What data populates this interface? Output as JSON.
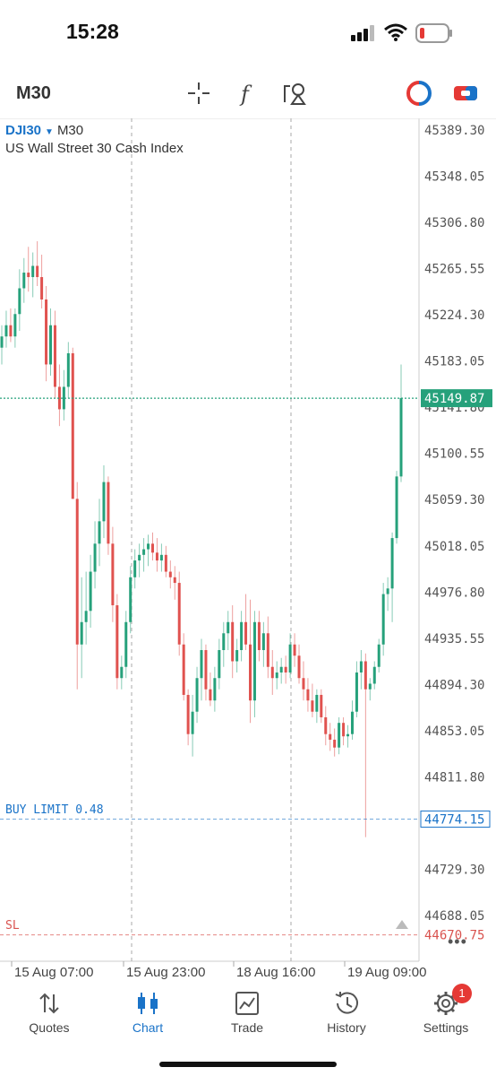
{
  "status_bar": {
    "time": "15:28"
  },
  "toolbar": {
    "timeframe": "M30",
    "icons": [
      "crosshair-icon",
      "function-icon",
      "drawing-objects-icon",
      "one-click-trading-icon",
      "trade-ticket-icon"
    ]
  },
  "chart": {
    "symbol": "DJI30",
    "timeframe": "M30",
    "description": "US Wall Street 30 Cash Index",
    "price_axis_labels": [
      "45389.30",
      "45348.05",
      "45306.80",
      "45265.55",
      "45224.30",
      "45183.05",
      "45141.80",
      "45100.55",
      "45059.30",
      "45018.05",
      "44976.80",
      "44935.55",
      "44894.30",
      "44853.05",
      "44811.80",
      "44774.15",
      "44729.30",
      "44688.05",
      "44670.75"
    ],
    "current_price": "45149.87",
    "buy_limit": {
      "label": "BUY LIMIT 0.48",
      "price": "44774.15"
    },
    "stop_loss": {
      "label": "SL",
      "price": "44670.75"
    },
    "time_labels": [
      "15 Aug 07:00",
      "15 Aug 23:00",
      "18 Aug 16:00",
      "19 Aug 09:00"
    ],
    "colors": {
      "bull": "#26a17b",
      "bear": "#e0524f",
      "buy_limit": "#1a73c8",
      "sl": "#d9534f",
      "current": "#26a17b"
    }
  },
  "chart_data": {
    "type": "candlestick",
    "symbol": "DJI30",
    "timeframe": "M30",
    "ylim": [
      44640,
      45410
    ],
    "candles": [
      {
        "o": 45195,
        "h": 45215,
        "l": 45180,
        "c": 45205
      },
      {
        "o": 45205,
        "h": 45228,
        "l": 45195,
        "c": 45215
      },
      {
        "o": 45215,
        "h": 45230,
        "l": 45200,
        "c": 45205
      },
      {
        "o": 45205,
        "h": 45230,
        "l": 45195,
        "c": 45225
      },
      {
        "o": 45225,
        "h": 45265,
        "l": 45210,
        "c": 45248
      },
      {
        "o": 45248,
        "h": 45275,
        "l": 45235,
        "c": 45262
      },
      {
        "o": 45262,
        "h": 45285,
        "l": 45245,
        "c": 45258
      },
      {
        "o": 45258,
        "h": 45280,
        "l": 45240,
        "c": 45268
      },
      {
        "o": 45268,
        "h": 45290,
        "l": 45250,
        "c": 45258
      },
      {
        "o": 45258,
        "h": 45278,
        "l": 45230,
        "c": 45238
      },
      {
        "o": 45238,
        "h": 45250,
        "l": 45165,
        "c": 45180
      },
      {
        "o": 45180,
        "h": 45230,
        "l": 45170,
        "c": 45215
      },
      {
        "o": 45215,
        "h": 45228,
        "l": 45150,
        "c": 45160
      },
      {
        "o": 45160,
        "h": 45180,
        "l": 45125,
        "c": 45140
      },
      {
        "o": 45140,
        "h": 45175,
        "l": 45130,
        "c": 45160
      },
      {
        "o": 45160,
        "h": 45200,
        "l": 45150,
        "c": 45190
      },
      {
        "o": 45190,
        "h": 45195,
        "l": 45060,
        "c": 45060
      },
      {
        "o": 45060,
        "h": 45075,
        "l": 44890,
        "c": 44930
      },
      {
        "o": 44930,
        "h": 44990,
        "l": 44900,
        "c": 44950
      },
      {
        "o": 44950,
        "h": 44995,
        "l": 44930,
        "c": 44960
      },
      {
        "o": 44960,
        "h": 45010,
        "l": 44945,
        "c": 44995
      },
      {
        "o": 44995,
        "h": 45040,
        "l": 44980,
        "c": 45020
      },
      {
        "o": 45020,
        "h": 45060,
        "l": 45000,
        "c": 45040
      },
      {
        "o": 45040,
        "h": 45090,
        "l": 45025,
        "c": 45075
      },
      {
        "o": 45075,
        "h": 45080,
        "l": 45010,
        "c": 45020
      },
      {
        "o": 45020,
        "h": 45035,
        "l": 44950,
        "c": 44965
      },
      {
        "o": 44965,
        "h": 44975,
        "l": 44890,
        "c": 44900
      },
      {
        "o": 44900,
        "h": 44920,
        "l": 44890,
        "c": 44910
      },
      {
        "o": 44910,
        "h": 44960,
        "l": 44900,
        "c": 44950
      },
      {
        "o": 44950,
        "h": 45000,
        "l": 44940,
        "c": 44990
      },
      {
        "o": 44990,
        "h": 45015,
        "l": 44980,
        "c": 45005
      },
      {
        "o": 45005,
        "h": 45020,
        "l": 44990,
        "c": 45010
      },
      {
        "o": 45010,
        "h": 45025,
        "l": 44995,
        "c": 45015
      },
      {
        "o": 45015,
        "h": 45028,
        "l": 45000,
        "c": 45020
      },
      {
        "o": 45020,
        "h": 45030,
        "l": 45005,
        "c": 45012
      },
      {
        "o": 45012,
        "h": 45025,
        "l": 44995,
        "c": 45005
      },
      {
        "o": 45005,
        "h": 45020,
        "l": 44995,
        "c": 45010
      },
      {
        "o": 45010,
        "h": 45018,
        "l": 44990,
        "c": 44995
      },
      {
        "o": 44995,
        "h": 45005,
        "l": 44980,
        "c": 44990
      },
      {
        "o": 44990,
        "h": 45000,
        "l": 44970,
        "c": 44985
      },
      {
        "o": 44985,
        "h": 44995,
        "l": 44920,
        "c": 44930
      },
      {
        "o": 44930,
        "h": 44940,
        "l": 44880,
        "c": 44885
      },
      {
        "o": 44885,
        "h": 44890,
        "l": 44840,
        "c": 44850
      },
      {
        "o": 44850,
        "h": 44885,
        "l": 44830,
        "c": 44870
      },
      {
        "o": 44870,
        "h": 44910,
        "l": 44860,
        "c": 44900
      },
      {
        "o": 44900,
        "h": 44935,
        "l": 44880,
        "c": 44925
      },
      {
        "o": 44925,
        "h": 44930,
        "l": 44880,
        "c": 44890
      },
      {
        "o": 44890,
        "h": 44905,
        "l": 44875,
        "c": 44880
      },
      {
        "o": 44880,
        "h": 44910,
        "l": 44870,
        "c": 44900
      },
      {
        "o": 44900,
        "h": 44935,
        "l": 44890,
        "c": 44925
      },
      {
        "o": 44925,
        "h": 44950,
        "l": 44910,
        "c": 44940
      },
      {
        "o": 44940,
        "h": 44960,
        "l": 44925,
        "c": 44950
      },
      {
        "o": 44950,
        "h": 44965,
        "l": 44900,
        "c": 44915
      },
      {
        "o": 44915,
        "h": 44935,
        "l": 44905,
        "c": 44925
      },
      {
        "o": 44925,
        "h": 44960,
        "l": 44915,
        "c": 44950
      },
      {
        "o": 44950,
        "h": 44975,
        "l": 44925,
        "c": 44930
      },
      {
        "o": 44930,
        "h": 44970,
        "l": 44860,
        "c": 44880
      },
      {
        "o": 44880,
        "h": 44960,
        "l": 44865,
        "c": 44950
      },
      {
        "o": 44950,
        "h": 44960,
        "l": 44915,
        "c": 44925
      },
      {
        "o": 44925,
        "h": 44950,
        "l": 44910,
        "c": 44940
      },
      {
        "o": 44940,
        "h": 44955,
        "l": 44900,
        "c": 44910
      },
      {
        "o": 44910,
        "h": 44925,
        "l": 44885,
        "c": 44900
      },
      {
        "o": 44900,
        "h": 44915,
        "l": 44890,
        "c": 44905
      },
      {
        "o": 44905,
        "h": 44918,
        "l": 44895,
        "c": 44910
      },
      {
        "o": 44910,
        "h": 44920,
        "l": 44895,
        "c": 44905
      },
      {
        "o": 44905,
        "h": 44940,
        "l": 44900,
        "c": 44930
      },
      {
        "o": 44930,
        "h": 44940,
        "l": 44910,
        "c": 44920
      },
      {
        "o": 44920,
        "h": 44930,
        "l": 44895,
        "c": 44900
      },
      {
        "o": 44900,
        "h": 44915,
        "l": 44880,
        "c": 44890
      },
      {
        "o": 44890,
        "h": 44900,
        "l": 44870,
        "c": 44880
      },
      {
        "o": 44880,
        "h": 44895,
        "l": 44865,
        "c": 44870
      },
      {
        "o": 44870,
        "h": 44890,
        "l": 44860,
        "c": 44885
      },
      {
        "o": 44885,
        "h": 44890,
        "l": 44860,
        "c": 44865
      },
      {
        "o": 44865,
        "h": 44875,
        "l": 44840,
        "c": 44850
      },
      {
        "o": 44850,
        "h": 44860,
        "l": 44835,
        "c": 44845
      },
      {
        "o": 44845,
        "h": 44855,
        "l": 44830,
        "c": 44838
      },
      {
        "o": 44838,
        "h": 44865,
        "l": 44832,
        "c": 44860
      },
      {
        "o": 44860,
        "h": 44865,
        "l": 44840,
        "c": 44848
      },
      {
        "o": 44848,
        "h": 44858,
        "l": 44838,
        "c": 44850
      },
      {
        "o": 44850,
        "h": 44880,
        "l": 44845,
        "c": 44870
      },
      {
        "o": 44870,
        "h": 44915,
        "l": 44865,
        "c": 44905
      },
      {
        "o": 44905,
        "h": 44925,
        "l": 44890,
        "c": 44915
      },
      {
        "o": 44915,
        "h": 44922,
        "l": 44758,
        "c": 44890
      },
      {
        "o": 44890,
        "h": 44900,
        "l": 44880,
        "c": 44895
      },
      {
        "o": 44895,
        "h": 44915,
        "l": 44890,
        "c": 44910
      },
      {
        "o": 44910,
        "h": 44935,
        "l": 44905,
        "c": 44930
      },
      {
        "o": 44930,
        "h": 44985,
        "l": 44920,
        "c": 44975
      },
      {
        "o": 44975,
        "h": 44990,
        "l": 44960,
        "c": 44980
      },
      {
        "o": 44980,
        "h": 45030,
        "l": 44950,
        "c": 45025
      },
      {
        "o": 45025,
        "h": 45085,
        "l": 45020,
        "c": 45080
      },
      {
        "o": 45080,
        "h": 45180,
        "l": 45075,
        "c": 45150
      }
    ],
    "current_price": 45149.87,
    "horizontal_lines": [
      {
        "label": "BUY LIMIT 0.48",
        "value": 44774.15
      },
      {
        "label": "SL",
        "value": 44670.75
      }
    ],
    "x_tick_labels": [
      "15 Aug 07:00",
      "15 Aug 23:00",
      "18 Aug 16:00",
      "19 Aug 09:00"
    ]
  },
  "tabs": [
    {
      "label": "Quotes",
      "icon": "quotes-icon"
    },
    {
      "label": "Chart",
      "icon": "chart-icon",
      "active": true
    },
    {
      "label": "Trade",
      "icon": "trade-icon"
    },
    {
      "label": "History",
      "icon": "history-icon"
    },
    {
      "label": "Settings",
      "icon": "settings-icon",
      "badge": "1"
    }
  ]
}
